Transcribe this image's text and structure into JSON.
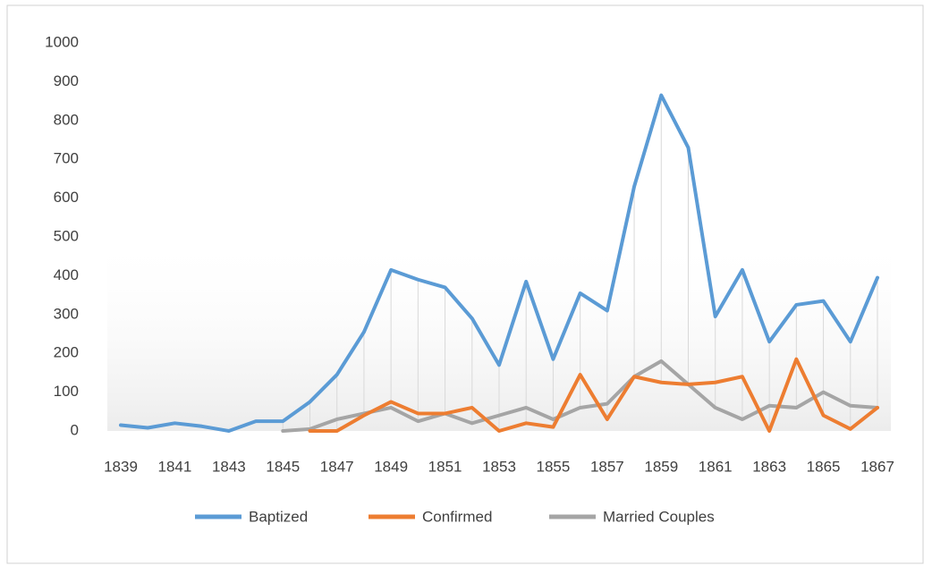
{
  "chart_data": {
    "type": "line",
    "x": [
      1839,
      1840,
      1841,
      1842,
      1843,
      1844,
      1845,
      1846,
      1847,
      1848,
      1849,
      1850,
      1851,
      1852,
      1853,
      1854,
      1855,
      1856,
      1857,
      1858,
      1859,
      1860,
      1861,
      1862,
      1863,
      1864,
      1865,
      1866,
      1867
    ],
    "xlim": [
      1839,
      1867
    ],
    "xticks": [
      1839,
      1841,
      1843,
      1845,
      1847,
      1849,
      1851,
      1853,
      1855,
      1857,
      1859,
      1861,
      1863,
      1865,
      1867
    ],
    "ylim": [
      0,
      1000
    ],
    "yticks": [
      0,
      100,
      200,
      300,
      400,
      500,
      600,
      700,
      800,
      900,
      1000
    ],
    "legend": "bottom",
    "series": [
      {
        "name": "Baptized",
        "color": "#5b9bd5",
        "values": [
          15,
          8,
          20,
          12,
          0,
          25,
          25,
          75,
          145,
          255,
          415,
          390,
          370,
          290,
          170,
          385,
          185,
          355,
          310,
          630,
          865,
          730,
          295,
          415,
          230,
          325,
          335,
          230,
          395
        ]
      },
      {
        "name": "Confirmed",
        "color": "#ed7d31",
        "values": [
          null,
          null,
          null,
          null,
          null,
          null,
          null,
          0,
          0,
          40,
          75,
          45,
          45,
          60,
          0,
          20,
          10,
          145,
          30,
          140,
          125,
          120,
          125,
          140,
          0,
          185,
          40,
          5,
          60
        ]
      },
      {
        "name": "Married Couples",
        "color": "#a5a5a5",
        "values": [
          null,
          null,
          null,
          null,
          null,
          null,
          0,
          5,
          30,
          45,
          60,
          25,
          45,
          20,
          40,
          60,
          30,
          60,
          70,
          140,
          180,
          120,
          60,
          30,
          65,
          60,
          100,
          65,
          60
        ]
      }
    ]
  }
}
